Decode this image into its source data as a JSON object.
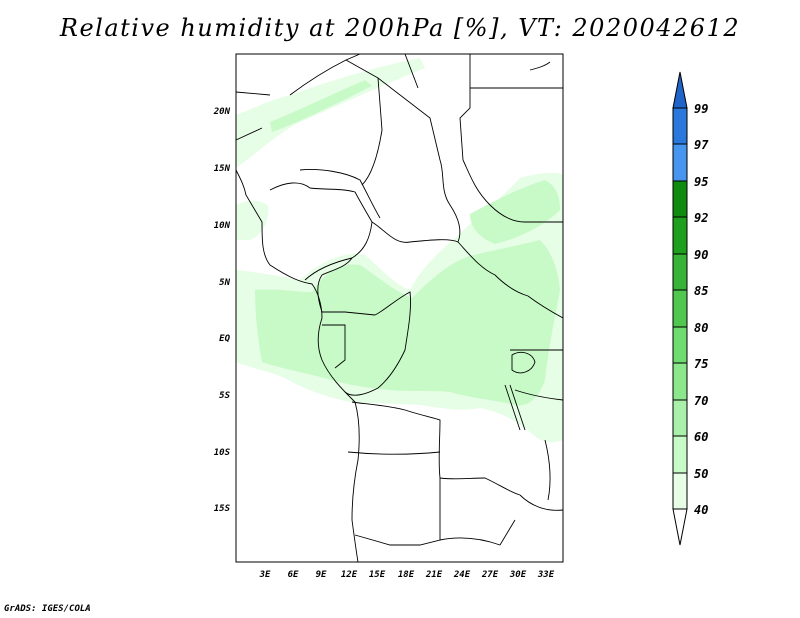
{
  "title": "Relative humidity at 200hPa [%], VT: 2020042612",
  "footer": "GrADS: IGES/COLA",
  "map": {
    "lat_labels": [
      "20N",
      "15N",
      "10N",
      "5N",
      "EQ",
      "5S",
      "10S",
      "15S"
    ],
    "lon_labels": [
      "3E",
      "6E",
      "9E",
      "12E",
      "15E",
      "18E",
      "21E",
      "24E",
      "27E",
      "30E",
      "33E"
    ],
    "lat_range": [
      -20,
      24.5
    ],
    "lon_range": [
      0,
      35
    ],
    "humid_regions_min_class": "40-50 / 50-60 (light green)"
  },
  "colorbar": {
    "levels": [
      "99",
      "97",
      "95",
      "92",
      "90",
      "85",
      "80",
      "75",
      "70",
      "60",
      "50",
      "40"
    ],
    "colors": {
      "gt99": "#1f64c8",
      "97_99": "#2a78dc",
      "95_97": "#4696f0",
      "92_95": "#0f8c0f",
      "90_92": "#1ea01e",
      "85_90": "#37b437",
      "80_85": "#50c850",
      "75_80": "#6edc6e",
      "70_75": "#8ce68c",
      "60_70": "#aaf0aa",
      "50_60": "#c8fac8",
      "40_50": "#e6fde6",
      "lt40": "#ffffff"
    }
  }
}
